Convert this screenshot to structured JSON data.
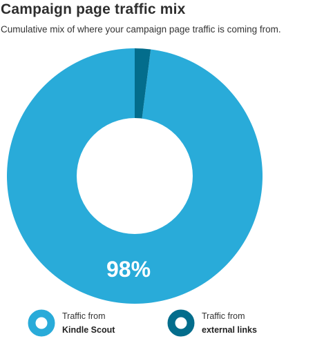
{
  "header": {
    "title": "Campaign page traffic mix",
    "subtitle": "Cumulative mix of where your campaign page traffic is coming from."
  },
  "colors": {
    "primary": "#29abd9",
    "secondary": "#036d8c",
    "center": "#ffffff"
  },
  "chart_data": {
    "type": "pie",
    "style": "donut",
    "title": "Campaign page traffic mix",
    "subtitle": "Cumulative mix of where your campaign page traffic is coming from.",
    "slices": [
      {
        "label": "Traffic from Kindle Scout",
        "value": 98,
        "color": "#29abd9"
      },
      {
        "label": "Traffic from external links",
        "value": 2,
        "color": "#036d8c"
      }
    ],
    "data_label": "98%",
    "legend_position": "bottom"
  },
  "legend": [
    {
      "line1": "Traffic from",
      "line2": "Kindle Scout"
    },
    {
      "line1": "Traffic from",
      "line2": "external links"
    }
  ]
}
